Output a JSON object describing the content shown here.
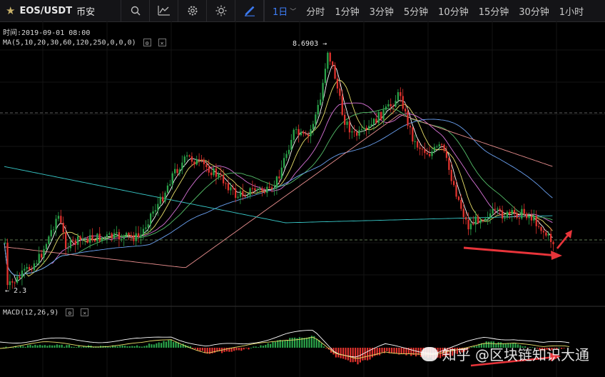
{
  "toolbar": {
    "symbol": "EOS/USDT",
    "exchange": "币安",
    "intervals": [
      {
        "label": "1日",
        "active": true
      },
      {
        "label": "分时",
        "active": false
      },
      {
        "label": "1分钟",
        "active": false
      },
      {
        "label": "3分钟",
        "active": false
      },
      {
        "label": "5分钟",
        "active": false
      },
      {
        "label": "10分钟",
        "active": false
      },
      {
        "label": "15分钟",
        "active": false
      },
      {
        "label": "30分钟",
        "active": false
      },
      {
        "label": "1小时",
        "active": false
      }
    ]
  },
  "info": {
    "time": "时间:2019-09-01 08:00",
    "ma": "MA(5,10,20,30,60,120,250,0,0,0)",
    "macd": "MACD(12,26,9)"
  },
  "annotations": {
    "high_label": "8.6903",
    "low_label": "2.3"
  },
  "watermark": "知乎 @区块链知识大通",
  "colors": {
    "up": "#2aa44a",
    "down": "#e0322d",
    "accent": "#3d7cf5",
    "arrow": "#e8343a"
  },
  "chart_data": {
    "type": "candlestick",
    "price_high": 8.6903,
    "price_low": 2.3,
    "indicators": [
      "MA(5,10,20,30,60,120,250)",
      "MACD(12,26,9)"
    ]
  }
}
